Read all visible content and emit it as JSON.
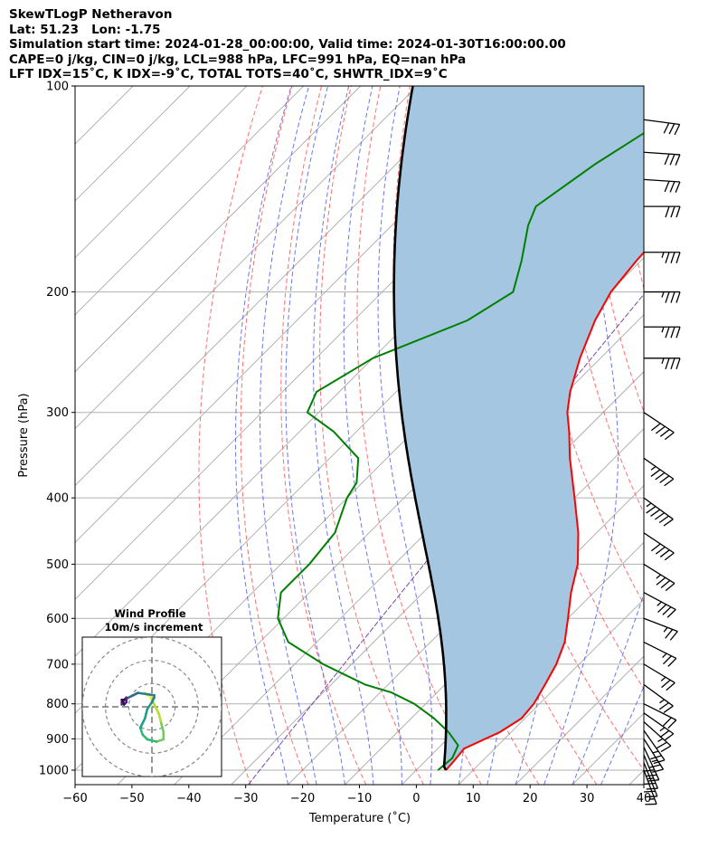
{
  "title_lines": [
    "SkewTLogP Netheravon",
    "Lat: 51.23   Lon: -1.75",
    "Simulation start time: 2024-01-28_00:00:00, Valid time: 2024-01-30T16:00:00.00",
    "CAPE=0 j/kg, CIN=0 j/kg, LCL=988 hPa, LFC=991 hPa, EQ=nan hPa",
    "LFT IDX=15˚C, K IDX=-9˚C, TOTAL TOTS=40˚C, SHWTR_IDX=9˚C"
  ],
  "chart_data": {
    "type": "skew-t",
    "xlabel": "Temperature (˚C)",
    "ylabel": "Pressure (hPa)",
    "xlim": [
      -60,
      40
    ],
    "ylim": [
      1050,
      100
    ],
    "x_ticks": [
      -60,
      -50,
      -40,
      -30,
      -20,
      -10,
      0,
      10,
      20,
      30,
      40
    ],
    "y_ticks": [
      1000,
      900,
      800,
      700,
      600,
      500,
      400,
      300,
      200,
      100
    ],
    "grid": true,
    "colors": {
      "temperature": "#ff0000",
      "dewpoint": "#008000",
      "parcel": "#000000",
      "shading": "#a4c6e0",
      "dry_adiabat": "#ff5555",
      "moist_adiabat": "#4455ee",
      "mixing_ratio": "#7744aa",
      "isotherm": "#aaaaaa"
    },
    "temperature": [
      {
        "p": 1000,
        "t": 5.2
      },
      {
        "p": 970,
        "t": 5.0
      },
      {
        "p": 930,
        "t": 4.6
      },
      {
        "p": 880,
        "t": 8.0
      },
      {
        "p": 840,
        "t": 9.4
      },
      {
        "p": 800,
        "t": 9.0
      },
      {
        "p": 750,
        "t": 7.6
      },
      {
        "p": 700,
        "t": 6.0
      },
      {
        "p": 650,
        "t": 3.6
      },
      {
        "p": 600,
        "t": 0.0
      },
      {
        "p": 550,
        "t": -4.0
      },
      {
        "p": 500,
        "t": -7.8
      },
      {
        "p": 450,
        "t": -13.2
      },
      {
        "p": 400,
        "t": -20.0
      },
      {
        "p": 350,
        "t": -27.8
      },
      {
        "p": 320,
        "t": -32.6
      },
      {
        "p": 300,
        "t": -36.3
      },
      {
        "p": 280,
        "t": -39.4
      },
      {
        "p": 250,
        "t": -43.6
      },
      {
        "p": 220,
        "t": -47.6
      },
      {
        "p": 200,
        "t": -49.8
      },
      {
        "p": 180,
        "t": -50.8
      },
      {
        "p": 160,
        "t": -51.4
      },
      {
        "p": 150,
        "t": -51.2
      },
      {
        "p": 140,
        "t": -51.4
      },
      {
        "p": 130,
        "t": -53.0
      },
      {
        "p": 120,
        "t": -54.0
      },
      {
        "p": 110,
        "t": -55.4
      },
      {
        "p": 100,
        "t": -56.6
      }
    ],
    "dewpoint": [
      {
        "p": 1000,
        "t": 3.8
      },
      {
        "p": 960,
        "t": 4.2
      },
      {
        "p": 920,
        "t": 3.0
      },
      {
        "p": 880,
        "t": -1.0
      },
      {
        "p": 840,
        "t": -6.0
      },
      {
        "p": 800,
        "t": -12.0
      },
      {
        "p": 770,
        "t": -18.0
      },
      {
        "p": 750,
        "t": -24.0
      },
      {
        "p": 700,
        "t": -35.0
      },
      {
        "p": 650,
        "t": -45.0
      },
      {
        "p": 600,
        "t": -51.0
      },
      {
        "p": 550,
        "t": -55.0
      },
      {
        "p": 500,
        "t": -55.0
      },
      {
        "p": 450,
        "t": -56.0
      },
      {
        "p": 400,
        "t": -60.0
      },
      {
        "p": 380,
        "t": -61.0
      },
      {
        "p": 350,
        "t": -65.0
      },
      {
        "p": 320,
        "t": -74.0
      },
      {
        "p": 300,
        "t": -82.0
      },
      {
        "p": 280,
        "t": -84.0
      },
      {
        "p": 250,
        "t": -80.0
      },
      {
        "p": 220,
        "t": -70.0
      },
      {
        "p": 200,
        "t": -67.0
      },
      {
        "p": 180,
        "t": -71.0
      },
      {
        "p": 160,
        "t": -76.0
      },
      {
        "p": 150,
        "t": -78.0
      },
      {
        "p": 130,
        "t": -75.0
      },
      {
        "p": 110,
        "t": -70.0
      },
      {
        "p": 100,
        "t": -68.0
      }
    ],
    "parcel_surface": {
      "p": 1000,
      "t": 5.2,
      "td": 3.8,
      "p_top": 100
    },
    "dry_adiabats_theta_c": [
      -30,
      -20,
      -10,
      0,
      10,
      20,
      30,
      40,
      50,
      60,
      70,
      80,
      90,
      100,
      110,
      120,
      130,
      140,
      150,
      160,
      170,
      180
    ],
    "moist_adiabats_c": [
      -20,
      -15,
      -10,
      -5,
      0,
      5,
      10,
      15,
      20,
      25,
      30,
      35
    ],
    "mixing_ratios_gkg": [
      0.4
    ],
    "wind_barbs": [
      {
        "p": 1000,
        "u": 3,
        "v": 8
      },
      {
        "p": 975,
        "u": 4,
        "v": 10
      },
      {
        "p": 950,
        "u": 5,
        "v": 12
      },
      {
        "p": 925,
        "u": 6,
        "v": 13
      },
      {
        "p": 900,
        "u": 7,
        "v": 11
      },
      {
        "p": 875,
        "u": 7,
        "v": 10
      },
      {
        "p": 850,
        "u": 9,
        "v": 8
      },
      {
        "p": 825,
        "u": 10,
        "v": 7
      },
      {
        "p": 800,
        "u": 10,
        "v": 5
      },
      {
        "p": 750,
        "u": 11,
        "v": 8
      },
      {
        "p": 700,
        "u": 10,
        "v": 6
      },
      {
        "p": 650,
        "u": 12,
        "v": 6
      },
      {
        "p": 600,
        "u": 13,
        "v": 5
      },
      {
        "p": 550,
        "u": 15,
        "v": 8
      },
      {
        "p": 500,
        "u": 16,
        "v": 10
      },
      {
        "p": 450,
        "u": 18,
        "v": 12
      },
      {
        "p": 400,
        "u": 22,
        "v": 16
      },
      {
        "p": 350,
        "u": 20,
        "v": 14
      },
      {
        "p": 300,
        "u": 18,
        "v": 12
      },
      {
        "p": 250,
        "u": 17,
        "v": 0
      },
      {
        "p": 225,
        "u": 17,
        "v": 0
      },
      {
        "p": 200,
        "u": 18,
        "v": 0
      },
      {
        "p": 175,
        "u": 17,
        "v": 0
      },
      {
        "p": 150,
        "u": 16,
        "v": 0
      },
      {
        "p": 137,
        "u": 15,
        "v": 1
      },
      {
        "p": 125,
        "u": 15,
        "v": 1
      },
      {
        "p": 112,
        "u": 15,
        "v": 2
      }
    ],
    "hodograph": {
      "title": "Wind Profile",
      "subtitle": "10m/s increment",
      "ring_step": 10,
      "max": 30,
      "colormap": "viridis",
      "points": [
        [
          -3,
          6
        ],
        [
          -2,
          5
        ],
        [
          -1,
          5
        ],
        [
          0,
          3
        ],
        [
          1,
          1
        ],
        [
          3,
          -3
        ],
        [
          4,
          -7
        ],
        [
          5,
          -11
        ],
        [
          5,
          -14
        ],
        [
          2,
          -15
        ],
        [
          -2,
          -14
        ],
        [
          -4,
          -12
        ],
        [
          -5,
          -9
        ],
        [
          -3,
          -5
        ],
        [
          -2,
          -1
        ],
        [
          0,
          2
        ],
        [
          1,
          4
        ],
        [
          1,
          5
        ],
        [
          -6,
          6
        ],
        [
          -8,
          5
        ],
        [
          -10,
          4
        ],
        [
          -12,
          3
        ],
        [
          -13,
          2
        ],
        [
          -13,
          1
        ],
        [
          -12,
          3
        ],
        [
          -11,
          4
        ],
        [
          -11,
          2
        ],
        [
          -12,
          1
        ],
        [
          -13,
          3
        ],
        [
          -12,
          3
        ]
      ]
    }
  }
}
